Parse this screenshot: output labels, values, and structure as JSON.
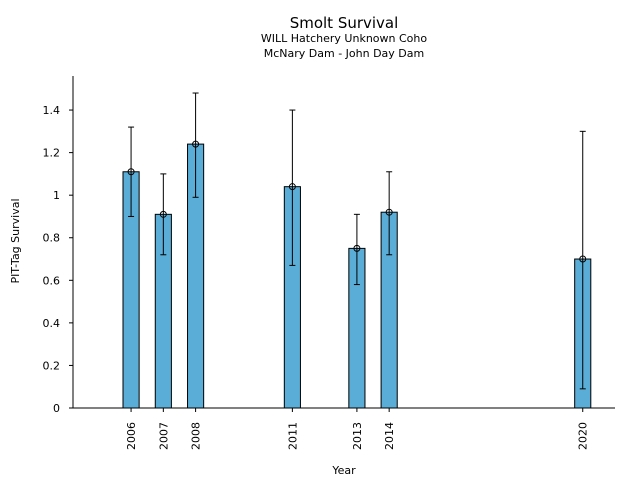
{
  "chart_data": {
    "type": "bar",
    "title": "Smolt Survival",
    "subtitle_lines": [
      "WILL Hatchery Unknown Coho",
      "McNary Dam - John Day Dam"
    ],
    "xlabel": "Year",
    "ylabel": "PIT-Tag Survival",
    "x_range": [
      2004.2,
      2021.0
    ],
    "ylim": [
      0,
      1.56
    ],
    "y_ticks": [
      {
        "value": 0,
        "label": "0"
      },
      {
        "value": 0.2,
        "label": "0.2"
      },
      {
        "value": 0.4,
        "label": "0.4"
      },
      {
        "value": 0.6,
        "label": "0.6"
      },
      {
        "value": 0.8,
        "label": "0.8"
      },
      {
        "value": 1.0,
        "label": "1"
      },
      {
        "value": 1.2,
        "label": "1.2"
      },
      {
        "value": 1.4,
        "label": "1.4"
      }
    ],
    "bar_width_years": 0.5,
    "bars": [
      {
        "year": 2006,
        "label": "2006",
        "value": 1.11,
        "lower": 0.9,
        "upper": 1.32
      },
      {
        "year": 2007,
        "label": "2007",
        "value": 0.91,
        "lower": 0.72,
        "upper": 1.1
      },
      {
        "year": 2008,
        "label": "2008",
        "value": 1.24,
        "lower": 0.99,
        "upper": 1.48
      },
      {
        "year": 2011,
        "label": "2011",
        "value": 1.04,
        "lower": 0.67,
        "upper": 1.4
      },
      {
        "year": 2013,
        "label": "2013",
        "value": 0.75,
        "lower": 0.58,
        "upper": 0.91
      },
      {
        "year": 2014,
        "label": "2014",
        "value": 0.92,
        "lower": 0.72,
        "upper": 1.11
      },
      {
        "year": 2020,
        "label": "2020",
        "value": 0.7,
        "lower": 0.09,
        "upper": 1.3
      }
    ]
  }
}
